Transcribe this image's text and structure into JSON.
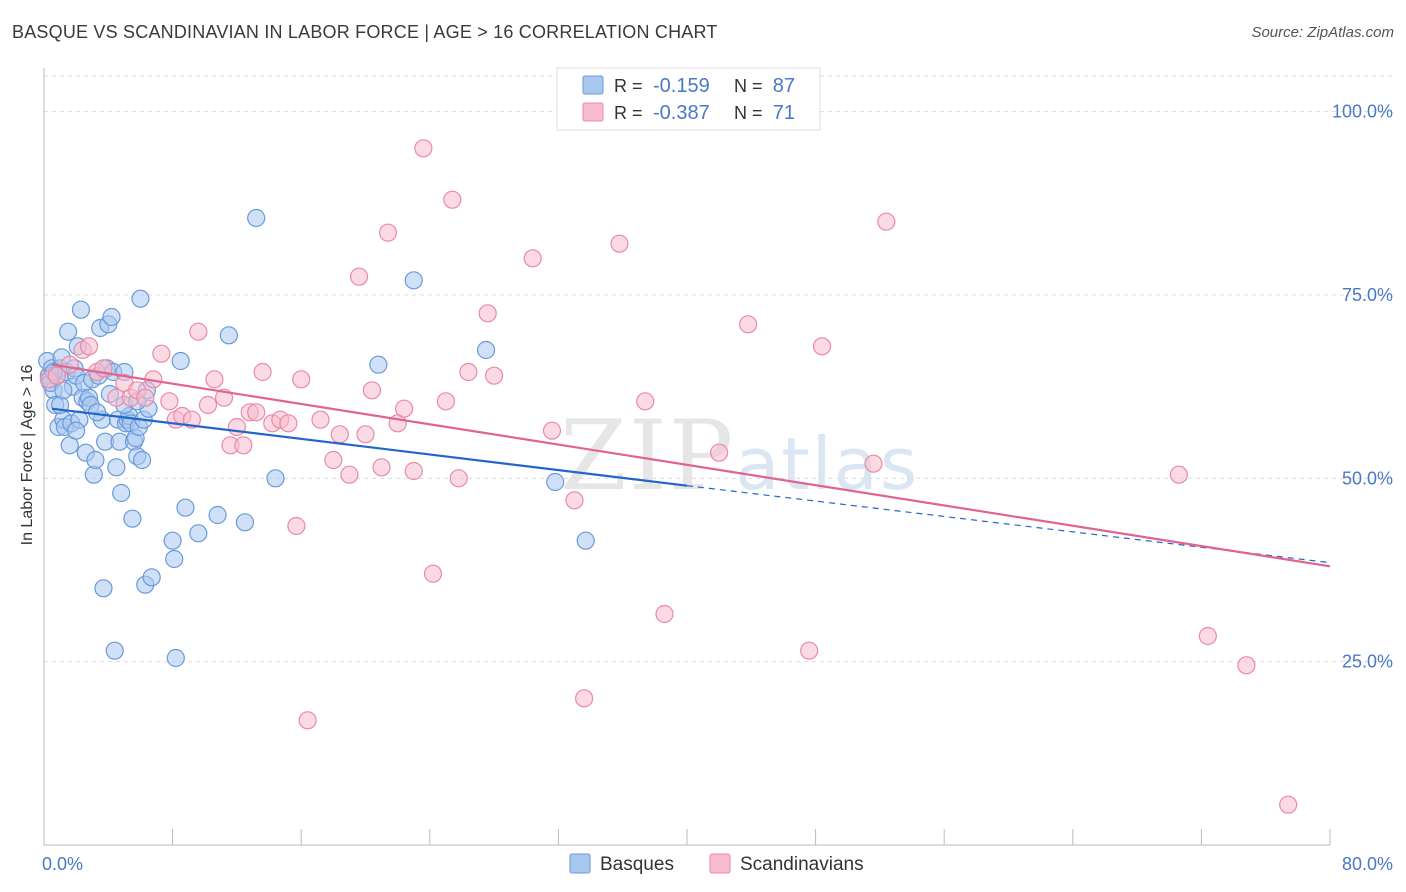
{
  "header": {
    "title": "BASQUE VS SCANDINAVIAN IN LABOR FORCE | AGE > 16 CORRELATION CHART",
    "source": "Source: ZipAtlas.com"
  },
  "watermark": {
    "zip": "ZIP",
    "atlas": "atlas"
  },
  "legend_top": {
    "rows": [
      {
        "r_label": "R =",
        "r_value": "-0.159",
        "n_label": "N =",
        "n_value": "87"
      },
      {
        "r_label": "R =",
        "r_value": "-0.387",
        "n_label": "N =",
        "n_value": "71"
      }
    ]
  },
  "legend_bottom": {
    "items": [
      "Basques",
      "Scandinavians"
    ]
  },
  "colors": {
    "basques_fill": "#a9c8f0",
    "basques_stroke": "#6a9ad8",
    "basques_line": "#2266cc",
    "scand_fill": "#f7bccd",
    "scand_stroke": "#e98aa8",
    "scand_line": "#e0648e",
    "tick_label": "#4a78c8",
    "grid": "#dddddd"
  },
  "chart_data": {
    "type": "scatter",
    "title": "BASQUE VS SCANDINAVIAN IN LABOR FORCE | AGE > 16 CORRELATION CHART",
    "ylabel": "In Labor Force | Age > 16",
    "xlabel": "",
    "xlim": [
      0,
      80
    ],
    "ylim": [
      0,
      105
    ],
    "x_tick_labels": [
      "0.0%",
      "80.0%"
    ],
    "y_ticks": [
      25,
      50,
      75,
      100
    ],
    "y_tick_labels": [
      "25.0%",
      "50.0%",
      "75.0%",
      "100.0%"
    ],
    "grid": "horizontal dashed",
    "legend_position": "top-center",
    "series": [
      {
        "name": "Basques",
        "r": -0.159,
        "n": 87,
        "trend": {
          "x": [
            0.5,
            40
          ],
          "y": [
            59.5,
            49
          ],
          "extend_x": 80,
          "extend_y": 38.5
        },
        "points": [
          [
            0.2,
            66
          ],
          [
            0.3,
            64
          ],
          [
            0.4,
            63.5
          ],
          [
            0.5,
            65
          ],
          [
            0.6,
            62
          ],
          [
            0.7,
            60
          ],
          [
            0.8,
            64
          ],
          [
            0.9,
            57
          ],
          [
            1.0,
            65
          ],
          [
            1.1,
            66.5
          ],
          [
            1.2,
            58
          ],
          [
            1.3,
            57
          ],
          [
            1.4,
            64.5
          ],
          [
            1.5,
            70
          ],
          [
            1.6,
            54.5
          ],
          [
            1.7,
            57.5
          ],
          [
            1.8,
            62.5
          ],
          [
            1.9,
            65
          ],
          [
            2.0,
            64
          ],
          [
            2.1,
            68
          ],
          [
            2.2,
            58
          ],
          [
            2.3,
            73
          ],
          [
            2.4,
            61
          ],
          [
            2.5,
            63
          ],
          [
            2.6,
            53.5
          ],
          [
            2.7,
            60.5
          ],
          [
            2.8,
            61
          ],
          [
            2.9,
            60
          ],
          [
            3.0,
            63.5
          ],
          [
            3.1,
            50.5
          ],
          [
            3.2,
            52.5
          ],
          [
            3.4,
            64
          ],
          [
            3.5,
            70.5
          ],
          [
            3.6,
            58
          ],
          [
            3.7,
            35
          ],
          [
            3.8,
            55
          ],
          [
            3.9,
            65
          ],
          [
            4.0,
            71
          ],
          [
            4.2,
            72
          ],
          [
            4.3,
            64.5
          ],
          [
            4.4,
            26.5
          ],
          [
            4.5,
            51.5
          ],
          [
            4.6,
            58
          ],
          [
            4.7,
            55
          ],
          [
            4.8,
            48
          ],
          [
            5.0,
            64.5
          ],
          [
            5.1,
            57.5
          ],
          [
            5.2,
            58
          ],
          [
            5.3,
            58.5
          ],
          [
            5.4,
            57.5
          ],
          [
            5.5,
            44.5
          ],
          [
            5.6,
            55
          ],
          [
            5.7,
            55.5
          ],
          [
            5.8,
            53
          ],
          [
            5.9,
            57
          ],
          [
            6.0,
            74.5
          ],
          [
            6.1,
            52.5
          ],
          [
            6.2,
            58
          ],
          [
            6.3,
            35.5
          ],
          [
            6.5,
            59.5
          ],
          [
            6.7,
            36.5
          ],
          [
            8.0,
            41.5
          ],
          [
            8.1,
            39
          ],
          [
            8.2,
            25.5
          ],
          [
            8.5,
            66
          ],
          [
            8.8,
            46
          ],
          [
            9.6,
            42.5
          ],
          [
            10.8,
            45
          ],
          [
            11.5,
            69.5
          ],
          [
            12.5,
            44
          ],
          [
            13.2,
            85.5
          ],
          [
            14.4,
            50
          ],
          [
            20.8,
            65.5
          ],
          [
            23.0,
            77
          ],
          [
            27.5,
            67.5
          ],
          [
            31.8,
            49.5
          ],
          [
            33.7,
            41.5
          ],
          [
            0.4,
            63
          ],
          [
            0.6,
            64.5
          ],
          [
            1.0,
            60
          ],
          [
            1.2,
            62
          ],
          [
            2.0,
            56.5
          ],
          [
            3.3,
            59
          ],
          [
            4.1,
            61.5
          ],
          [
            5.0,
            60
          ],
          [
            5.8,
            60.5
          ],
          [
            6.4,
            62
          ]
        ]
      },
      {
        "name": "Scandinavians",
        "r": -0.387,
        "n": 71,
        "trend": {
          "x": [
            0.5,
            80
          ],
          "y": [
            65.5,
            38
          ]
        },
        "points": [
          [
            0.3,
            63.5
          ],
          [
            0.8,
            64
          ],
          [
            1.6,
            65.5
          ],
          [
            2.4,
            67.5
          ],
          [
            2.8,
            68
          ],
          [
            3.3,
            64.5
          ],
          [
            3.7,
            65
          ],
          [
            4.5,
            61
          ],
          [
            5.0,
            63
          ],
          [
            5.4,
            61
          ],
          [
            5.8,
            62
          ],
          [
            6.3,
            61
          ],
          [
            6.8,
            63.5
          ],
          [
            7.3,
            67
          ],
          [
            7.8,
            60.5
          ],
          [
            8.2,
            58
          ],
          [
            8.6,
            58.5
          ],
          [
            9.2,
            58
          ],
          [
            9.6,
            70
          ],
          [
            10.2,
            60
          ],
          [
            10.6,
            63.5
          ],
          [
            11.2,
            61
          ],
          [
            11.6,
            54.5
          ],
          [
            12.0,
            57
          ],
          [
            12.4,
            54.5
          ],
          [
            12.8,
            59
          ],
          [
            13.2,
            59
          ],
          [
            13.6,
            64.5
          ],
          [
            14.2,
            57.5
          ],
          [
            14.7,
            58
          ],
          [
            15.2,
            57.5
          ],
          [
            15.7,
            43.5
          ],
          [
            16.0,
            63.5
          ],
          [
            16.4,
            17
          ],
          [
            17.2,
            58
          ],
          [
            18.0,
            52.5
          ],
          [
            18.4,
            56
          ],
          [
            19.0,
            50.5
          ],
          [
            19.6,
            77.5
          ],
          [
            20.0,
            56
          ],
          [
            20.4,
            62
          ],
          [
            21.0,
            51.5
          ],
          [
            21.4,
            83.5
          ],
          [
            22.0,
            57.5
          ],
          [
            22.4,
            59.5
          ],
          [
            23.0,
            51
          ],
          [
            23.6,
            95
          ],
          [
            24.2,
            37
          ],
          [
            25.0,
            60.5
          ],
          [
            25.4,
            88
          ],
          [
            25.8,
            50
          ],
          [
            26.4,
            64.5
          ],
          [
            27.6,
            72.5
          ],
          [
            28.0,
            64
          ],
          [
            30.4,
            80
          ],
          [
            31.6,
            56.5
          ],
          [
            33.0,
            47
          ],
          [
            33.6,
            20
          ],
          [
            35.8,
            82
          ],
          [
            37.4,
            60.5
          ],
          [
            38.6,
            31.5
          ],
          [
            42.0,
            53.5
          ],
          [
            43.8,
            71
          ],
          [
            47.6,
            26.5
          ],
          [
            48.4,
            68
          ],
          [
            51.6,
            52
          ],
          [
            52.4,
            85
          ],
          [
            70.6,
            50.5
          ],
          [
            72.4,
            28.5
          ],
          [
            74.8,
            24.5
          ],
          [
            77.4,
            5.5
          ]
        ]
      }
    ]
  }
}
